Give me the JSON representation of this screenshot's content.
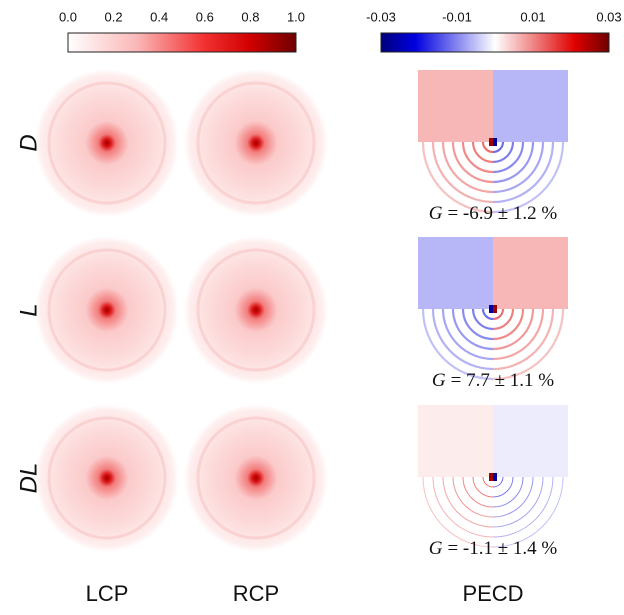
{
  "colorbars": [
    {
      "ticks": [
        "0.0",
        "0.2",
        "0.4",
        "0.6",
        "0.8",
        "1.0"
      ]
    },
    {
      "ticks": [
        "-0.03",
        "-0.01",
        "0.01",
        "0.03"
      ]
    }
  ],
  "columns": [
    "LCP",
    "RCP",
    "PECD"
  ],
  "rows": [
    {
      "label": "D",
      "annotation": {
        "symbol": "G",
        "text": "= -6.9 ± 1.2 %"
      }
    },
    {
      "label": "L",
      "annotation": {
        "symbol": "G",
        "text": "= 7.7 ± 1.1 %"
      }
    },
    {
      "label": "DL",
      "annotation": {
        "symbol": "G",
        "text": "= -1.1 ± 1.4 %"
      }
    }
  ]
}
